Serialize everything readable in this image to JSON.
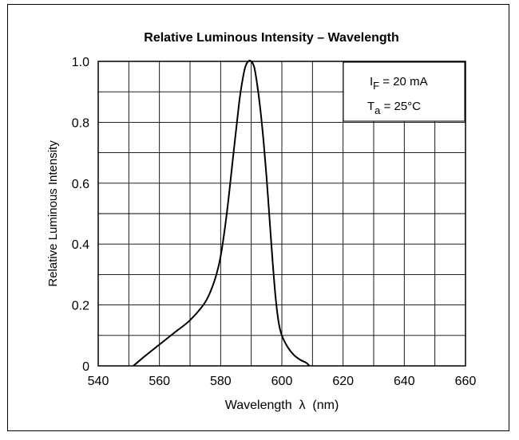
{
  "chart_data": {
    "type": "line",
    "title": "Relative Luminous Intensity – Wavelength",
    "xlabel": "Wavelength  λ  (nm)",
    "ylabel": "Relative Luminous Intensity",
    "xlim": [
      540,
      660
    ],
    "ylim": [
      0,
      1.0
    ],
    "x_ticks": [
      540,
      560,
      580,
      600,
      620,
      640,
      660
    ],
    "x_tick_labels": [
      "540",
      "560",
      "580",
      "600",
      "620",
      "640",
      "660"
    ],
    "y_ticks": [
      0,
      0.2,
      0.4,
      0.6,
      0.8,
      1.0
    ],
    "y_tick_labels": [
      "0",
      "0.2",
      "0.4",
      "0.6",
      "0.8",
      "1.0"
    ],
    "grid": true,
    "annotation": {
      "line1_main": "I",
      "line1_sub": "F",
      "line1_rest": " = 20 mA",
      "line2_main": "T",
      "line2_sub": "a",
      "line2_rest": " = 25°C"
    },
    "series": [
      {
        "x": [
          551.5,
          555,
          560,
          565,
          570,
          575,
          578,
          580,
          582,
          584,
          586,
          587,
          588,
          589,
          590,
          591,
          592,
          593,
          594,
          595,
          596,
          597,
          598,
          599,
          600,
          602,
          604,
          606,
          608,
          609
        ],
        "y": [
          0,
          0.03,
          0.07,
          0.11,
          0.15,
          0.21,
          0.28,
          0.36,
          0.5,
          0.68,
          0.86,
          0.93,
          0.98,
          1.0,
          1.0,
          0.98,
          0.92,
          0.84,
          0.74,
          0.62,
          0.48,
          0.34,
          0.22,
          0.14,
          0.1,
          0.06,
          0.035,
          0.02,
          0.01,
          0
        ]
      }
    ]
  }
}
